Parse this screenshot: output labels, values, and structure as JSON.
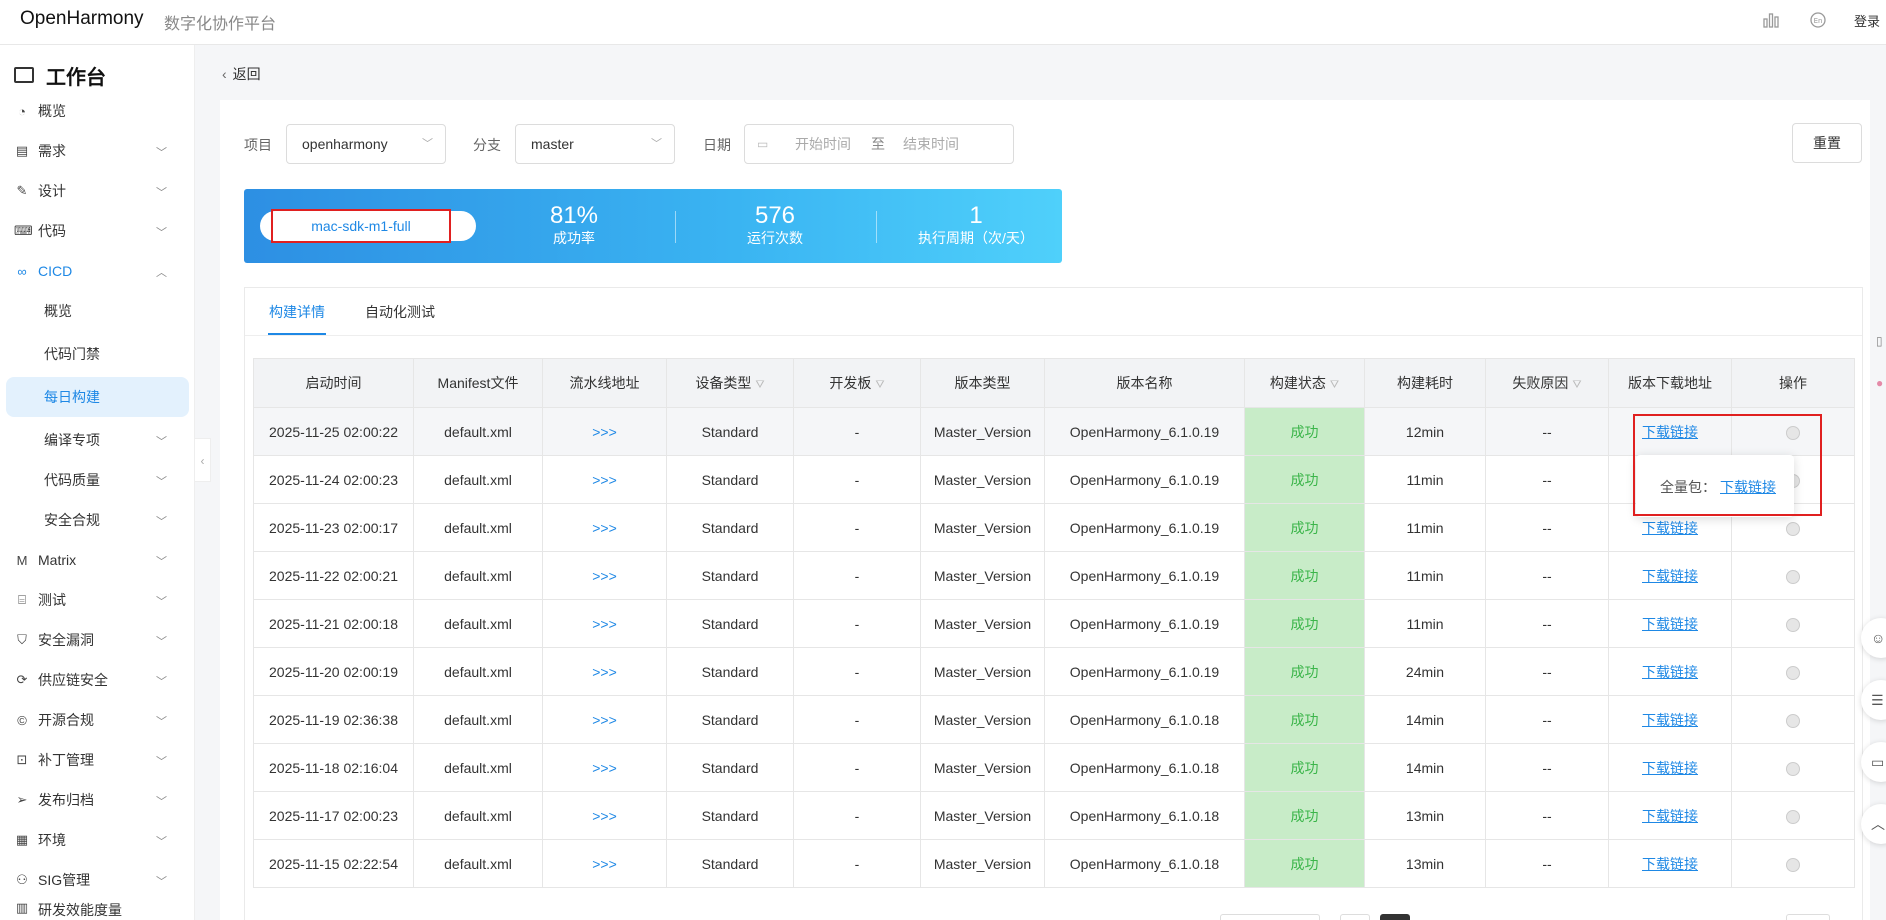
{
  "header": {
    "brand": "OpenHarmony",
    "subtitle": "数字化协作平台",
    "login": "登录",
    "icons": [
      "chart-icon",
      "language-icon"
    ]
  },
  "sidebar": {
    "title": "工作台",
    "items": [
      {
        "label": "概览",
        "icon": "dashboard-icon",
        "chevron": false
      },
      {
        "label": "需求",
        "icon": "clipboard-icon",
        "chevron": true
      },
      {
        "label": "设计",
        "icon": "design-icon",
        "chevron": true
      },
      {
        "label": "代码",
        "icon": "code-icon",
        "chevron": true
      },
      {
        "label": "CICD",
        "icon": "cicd-icon",
        "chevron": true,
        "expanded": true
      },
      {
        "label": "概览",
        "sub": true
      },
      {
        "label": "代码门禁",
        "sub": true
      },
      {
        "label": "每日构建",
        "sub": true,
        "selected": true
      },
      {
        "label": "编译专项",
        "sub": true,
        "chevron": true
      },
      {
        "label": "代码质量",
        "sub": true,
        "chevron": true
      },
      {
        "label": "安全合规",
        "sub": true,
        "chevron": true
      },
      {
        "label": "Matrix",
        "icon": "matrix-icon",
        "chevron": true
      },
      {
        "label": "测试",
        "icon": "test-icon",
        "chevron": true
      },
      {
        "label": "安全漏洞",
        "icon": "shield-icon",
        "chevron": true
      },
      {
        "label": "供应链安全",
        "icon": "supply-chain-icon",
        "chevron": true
      },
      {
        "label": "开源合规",
        "icon": "copyright-icon",
        "chevron": true
      },
      {
        "label": "补丁管理",
        "icon": "patch-icon",
        "chevron": true
      },
      {
        "label": "发布归档",
        "icon": "send-icon",
        "chevron": true
      },
      {
        "label": "环境",
        "icon": "environment-icon",
        "chevron": true
      },
      {
        "label": "SIG管理",
        "icon": "sig-icon",
        "chevron": true
      },
      {
        "label": "研发效能度量",
        "icon": "metrics-icon",
        "chevron": true
      }
    ]
  },
  "main": {
    "back_label": "返回",
    "filters": {
      "project_label": "项目",
      "project_value": "openharmony",
      "branch_label": "分支",
      "branch_value": "master",
      "date_label": "日期",
      "date_start_placeholder": "开始时间",
      "date_to": "至",
      "date_end_placeholder": "结束时间",
      "reset_label": "重置"
    },
    "banner": {
      "name": "mac-sdk-m1-full",
      "success_rate": "81%",
      "success_rate_label": "成功率",
      "runs": "576",
      "runs_label": "运行次数",
      "cycle": "1",
      "cycle_label": "执行周期（次/天）"
    },
    "tabs": [
      "构建详情",
      "自动化测试"
    ],
    "table": {
      "columns": [
        "启动时间",
        "Manifest文件",
        "流水线地址",
        "设备类型",
        "开发板",
        "版本类型",
        "版本名称",
        "构建状态",
        "构建耗时",
        "失败原因",
        "版本下载地址",
        "操作"
      ],
      "rows": [
        [
          "2025-11-25 02:00:22",
          "default.xml",
          ">>>",
          "Standard",
          "-",
          "Master_Version",
          "OpenHarmony_6.1.0.19",
          "成功",
          "12min",
          "--",
          "下载链接"
        ],
        [
          "2025-11-24 02:00:23",
          "default.xml",
          ">>>",
          "Standard",
          "-",
          "Master_Version",
          "OpenHarmony_6.1.0.19",
          "成功",
          "11min",
          "--",
          "下载链接"
        ],
        [
          "2025-11-23 02:00:17",
          "default.xml",
          ">>>",
          "Standard",
          "-",
          "Master_Version",
          "OpenHarmony_6.1.0.19",
          "成功",
          "11min",
          "--",
          "下载链接"
        ],
        [
          "2025-11-22 02:00:21",
          "default.xml",
          ">>>",
          "Standard",
          "-",
          "Master_Version",
          "OpenHarmony_6.1.0.19",
          "成功",
          "11min",
          "--",
          "下载链接"
        ],
        [
          "2025-11-21 02:00:18",
          "default.xml",
          ">>>",
          "Standard",
          "-",
          "Master_Version",
          "OpenHarmony_6.1.0.19",
          "成功",
          "11min",
          "--",
          "下载链接"
        ],
        [
          "2025-11-20 02:00:19",
          "default.xml",
          ">>>",
          "Standard",
          "-",
          "Master_Version",
          "OpenHarmony_6.1.0.19",
          "成功",
          "24min",
          "--",
          "下载链接"
        ],
        [
          "2025-11-19 02:36:38",
          "default.xml",
          ">>>",
          "Standard",
          "-",
          "Master_Version",
          "OpenHarmony_6.1.0.18",
          "成功",
          "14min",
          "--",
          "下载链接"
        ],
        [
          "2025-11-18 02:16:04",
          "default.xml",
          ">>>",
          "Standard",
          "-",
          "Master_Version",
          "OpenHarmony_6.1.0.18",
          "成功",
          "14min",
          "--",
          "下载链接"
        ],
        [
          "2025-11-17 02:00:23",
          "default.xml",
          ">>>",
          "Standard",
          "-",
          "Master_Version",
          "OpenHarmony_6.1.0.18",
          "成功",
          "13min",
          "--",
          "下载链接"
        ],
        [
          "2025-11-15 02:22:54",
          "default.xml",
          ">>>",
          "Standard",
          "-",
          "Master_Version",
          "OpenHarmony_6.1.0.18",
          "成功",
          "13min",
          "--",
          "下载链接"
        ]
      ]
    },
    "popover": {
      "key": "全量包：",
      "link": "下载链接"
    }
  },
  "colors": {
    "accent": "#1e88e5",
    "success_bg": "#c8ecc8",
    "success_text": "#3bb54a",
    "highlight_box": "#e02020"
  }
}
